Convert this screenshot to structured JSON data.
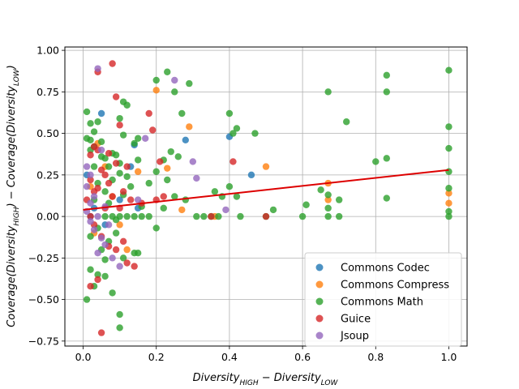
{
  "chart_data": {
    "type": "scatter",
    "title": "",
    "xlabel_main": "Diversity",
    "xlabel_sub1": "HIGH",
    "xlabel_mid": " − Diversity",
    "xlabel_sub2": "LOW",
    "ylabel_main1": "Coverage(Diversity",
    "ylabel_sub1": "HIGH",
    "ylabel_mid": ") − Coverage(Diversity",
    "ylabel_sub2": "LOW",
    "ylabel_end": ")",
    "xlim": [
      -0.05,
      1.05
    ],
    "ylim": [
      -0.78,
      1.02
    ],
    "xticks": [
      "0.0",
      "0.2",
      "0.4",
      "0.6",
      "0.8",
      "1.0"
    ],
    "xtick_values": [
      0.0,
      0.2,
      0.4,
      0.6,
      0.8,
      1.0
    ],
    "yticks": [
      "−0.75",
      "−0.50",
      "−0.25",
      "0.00",
      "0.25",
      "0.50",
      "0.75",
      "1.00"
    ],
    "ytick_values": [
      -0.75,
      -0.5,
      -0.25,
      0.0,
      0.25,
      0.5,
      0.75,
      1.0
    ],
    "grid": true,
    "legend_position": "lower-right",
    "trendline": {
      "color": "#dd0000",
      "x": [
        0.0,
        1.0
      ],
      "y": [
        0.04,
        0.28
      ]
    },
    "series": [
      {
        "name": "Commons Codec",
        "color": "#1f77b4",
        "points": [
          [
            0.05,
            0.62
          ],
          [
            0.1,
            0.1
          ],
          [
            0.14,
            0.43
          ],
          [
            0.28,
            0.46
          ],
          [
            0.4,
            0.48
          ],
          [
            0.46,
            0.25
          ],
          [
            0.01,
            0.25
          ],
          [
            0.02,
            0.0
          ],
          [
            0.03,
            0.05
          ],
          [
            0.06,
            -0.05
          ],
          [
            0.13,
            0.3
          ],
          [
            0.15,
            0.05
          ]
        ]
      },
      {
        "name": "Commons Compress",
        "color": "#ff7f0e",
        "points": [
          [
            0.2,
            0.76
          ],
          [
            0.29,
            0.54
          ],
          [
            0.5,
            0.3
          ],
          [
            0.23,
            0.29
          ],
          [
            0.27,
            0.04
          ],
          [
            0.67,
            0.2
          ],
          [
            0.67,
            0.1
          ],
          [
            1.0,
            0.14
          ],
          [
            1.0,
            0.08
          ],
          [
            0.15,
            0.27
          ],
          [
            0.04,
            0.44
          ],
          [
            0.1,
            -0.05
          ],
          [
            0.12,
            -0.2
          ],
          [
            0.36,
            0.0
          ],
          [
            0.08,
            0.12
          ],
          [
            0.02,
            0.18
          ],
          [
            0.06,
            0.3
          ],
          [
            0.03,
            -0.1
          ]
        ]
      },
      {
        "name": "Commons Math",
        "color": "#2ca02c",
        "points": [
          [
            0.01,
            0.63
          ],
          [
            0.02,
            0.56
          ],
          [
            0.04,
            0.57
          ],
          [
            0.03,
            0.51
          ],
          [
            0.02,
            0.46
          ],
          [
            0.05,
            0.45
          ],
          [
            0.03,
            0.42
          ],
          [
            0.01,
            0.47
          ],
          [
            0.06,
            0.35
          ],
          [
            0.07,
            0.3
          ],
          [
            0.08,
            0.38
          ],
          [
            0.09,
            0.37
          ],
          [
            0.1,
            0.32
          ],
          [
            0.11,
            0.69
          ],
          [
            0.12,
            0.67
          ],
          [
            0.1,
            0.59
          ],
          [
            0.11,
            0.49
          ],
          [
            0.14,
            0.44
          ],
          [
            0.15,
            0.47
          ],
          [
            0.18,
            0.2
          ],
          [
            0.2,
            0.82
          ],
          [
            0.23,
            0.87
          ],
          [
            0.25,
            0.75
          ],
          [
            0.27,
            0.62
          ],
          [
            0.29,
            0.8
          ],
          [
            0.24,
            0.39
          ],
          [
            0.26,
            0.36
          ],
          [
            0.22,
            0.34
          ],
          [
            0.2,
            0.27
          ],
          [
            0.23,
            0.22
          ],
          [
            0.4,
            0.62
          ],
          [
            0.41,
            0.5
          ],
          [
            0.42,
            0.53
          ],
          [
            0.47,
            0.5
          ],
          [
            0.4,
            0.18
          ],
          [
            0.36,
            0.15
          ],
          [
            0.38,
            0.12
          ],
          [
            0.42,
            0.12
          ],
          [
            0.6,
            0.0
          ],
          [
            0.61,
            0.07
          ],
          [
            0.65,
            0.16
          ],
          [
            0.67,
            0.75
          ],
          [
            0.67,
            0.13
          ],
          [
            0.67,
            0.05
          ],
          [
            0.67,
            0.0
          ],
          [
            0.7,
            0.1
          ],
          [
            0.72,
            0.57
          ],
          [
            0.8,
            0.33
          ],
          [
            0.83,
            0.85
          ],
          [
            0.83,
            0.75
          ],
          [
            0.83,
            0.35
          ],
          [
            0.83,
            0.11
          ],
          [
            1.0,
            0.88
          ],
          [
            1.0,
            0.54
          ],
          [
            1.0,
            0.41
          ],
          [
            1.0,
            0.27
          ],
          [
            1.0,
            0.17
          ],
          [
            1.0,
            0.03
          ],
          [
            1.0,
            0.0
          ],
          [
            0.5,
            0.0
          ],
          [
            0.52,
            0.04
          ],
          [
            0.31,
            0.0
          ],
          [
            0.33,
            0.0
          ],
          [
            0.35,
            0.0
          ],
          [
            0.37,
            0.0
          ],
          [
            0.43,
            0.0
          ],
          [
            0.7,
            0.0
          ],
          [
            0.2,
            -0.07
          ],
          [
            0.18,
            0.0
          ],
          [
            0.16,
            0.0
          ],
          [
            0.14,
            0.0
          ],
          [
            0.12,
            0.0
          ],
          [
            0.06,
            0.0
          ],
          [
            0.08,
            0.0
          ],
          [
            0.1,
            0.0
          ],
          [
            0.02,
            -0.32
          ],
          [
            0.01,
            -0.5
          ],
          [
            0.03,
            -0.42
          ],
          [
            0.04,
            -0.35
          ],
          [
            0.06,
            -0.36
          ],
          [
            0.08,
            -0.46
          ],
          [
            0.1,
            -0.59
          ],
          [
            0.1,
            -0.67
          ],
          [
            0.11,
            -0.25
          ],
          [
            0.14,
            -0.22
          ],
          [
            0.15,
            -0.22
          ],
          [
            0.02,
            -0.12
          ],
          [
            0.05,
            -0.2
          ],
          [
            0.07,
            -0.15
          ],
          [
            0.09,
            -0.1
          ],
          [
            0.03,
            0.1
          ],
          [
            0.04,
            0.2
          ],
          [
            0.06,
            0.15
          ],
          [
            0.08,
            0.22
          ],
          [
            0.1,
            0.26
          ],
          [
            0.12,
            0.24
          ],
          [
            0.13,
            0.18
          ],
          [
            0.15,
            0.34
          ],
          [
            0.16,
            0.06
          ],
          [
            0.22,
            0.05
          ],
          [
            0.25,
            0.12
          ],
          [
            0.28,
            0.1
          ],
          [
            0.03,
            0.3
          ],
          [
            0.05,
            0.36
          ],
          [
            0.02,
            0.4
          ],
          [
            0.07,
            0.08
          ],
          [
            0.11,
            0.13
          ],
          [
            0.09,
            -0.02
          ],
          [
            0.04,
            -0.07
          ],
          [
            0.06,
            -0.26
          ]
        ]
      },
      {
        "name": "Guice",
        "color": "#d62728",
        "points": [
          [
            0.08,
            0.92
          ],
          [
            0.04,
            0.87
          ],
          [
            0.09,
            0.72
          ],
          [
            0.18,
            0.62
          ],
          [
            0.1,
            0.55
          ],
          [
            0.19,
            0.52
          ],
          [
            0.03,
            0.42
          ],
          [
            0.04,
            0.4
          ],
          [
            0.02,
            0.37
          ],
          [
            0.07,
            0.38
          ],
          [
            0.09,
            0.32
          ],
          [
            0.12,
            0.3
          ],
          [
            0.21,
            0.33
          ],
          [
            0.41,
            0.33
          ],
          [
            0.05,
            0.28
          ],
          [
            0.06,
            0.25
          ],
          [
            0.02,
            0.22
          ],
          [
            0.04,
            0.17
          ],
          [
            0.07,
            0.2
          ],
          [
            0.08,
            0.12
          ],
          [
            0.11,
            0.15
          ],
          [
            0.13,
            0.1
          ],
          [
            0.16,
            0.08
          ],
          [
            0.2,
            0.1
          ],
          [
            0.22,
            0.12
          ],
          [
            0.35,
            0.0
          ],
          [
            0.5,
            0.0
          ],
          [
            0.02,
            0.0
          ],
          [
            0.03,
            -0.05
          ],
          [
            0.05,
            -0.12
          ],
          [
            0.07,
            -0.18
          ],
          [
            0.09,
            -0.2
          ],
          [
            0.11,
            -0.15
          ],
          [
            0.12,
            -0.28
          ],
          [
            0.14,
            -0.3
          ],
          [
            0.02,
            -0.42
          ],
          [
            0.04,
            -0.38
          ],
          [
            0.05,
            -0.7
          ],
          [
            0.06,
            0.05
          ],
          [
            0.01,
            0.1
          ],
          [
            0.03,
            0.15
          ],
          [
            0.1,
            0.05
          ]
        ]
      },
      {
        "name": "Jsoup",
        "color": "#9467bd",
        "points": [
          [
            0.04,
            0.89
          ],
          [
            0.25,
            0.82
          ],
          [
            0.17,
            0.47
          ],
          [
            0.3,
            0.33
          ],
          [
            0.31,
            0.23
          ],
          [
            0.05,
            0.4
          ],
          [
            0.01,
            0.3
          ],
          [
            0.02,
            0.25
          ],
          [
            0.01,
            0.18
          ],
          [
            0.03,
            0.12
          ],
          [
            0.02,
            0.08
          ],
          [
            0.01,
            0.03
          ],
          [
            0.04,
            0.0
          ],
          [
            0.02,
            -0.03
          ],
          [
            0.03,
            -0.08
          ],
          [
            0.05,
            -0.13
          ],
          [
            0.06,
            -0.17
          ],
          [
            0.04,
            -0.22
          ],
          [
            0.08,
            -0.25
          ],
          [
            0.1,
            -0.3
          ],
          [
            0.39,
            0.04
          ],
          [
            0.15,
            0.1
          ],
          [
            0.06,
            0.06
          ],
          [
            0.07,
            -0.05
          ]
        ]
      }
    ]
  }
}
